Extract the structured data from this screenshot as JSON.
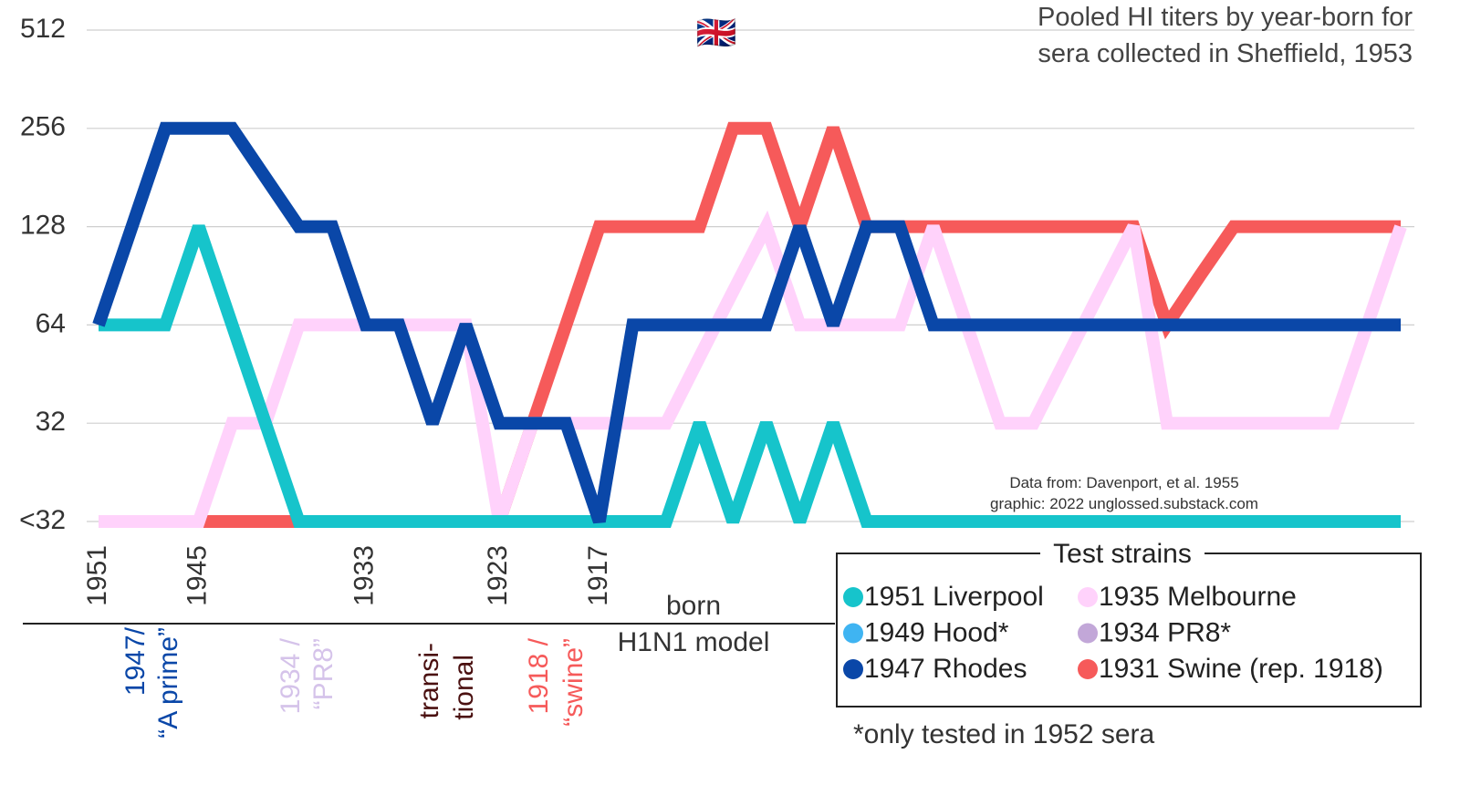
{
  "chart_data": {
    "type": "line",
    "title": [
      "Pooled HI titers by year-born for",
      "sera collected in Sheffield, 1953"
    ],
    "categories": [
      "1951",
      null,
      null,
      "1945",
      null,
      null,
      null,
      null,
      "1933",
      null,
      null,
      null,
      "1923",
      null,
      null,
      "1917",
      null,
      null,
      null,
      null,
      null,
      null,
      null,
      null,
      null,
      null,
      null,
      null,
      null,
      null,
      null,
      null,
      null,
      null,
      null,
      null,
      null,
      null,
      null,
      null
    ],
    "series": [
      {
        "name": "1951 Liverpool",
        "color": "#16c4cb",
        "values": [
          64,
          64,
          64,
          128,
          64,
          32,
          16,
          16,
          16,
          16,
          16,
          16,
          16,
          16,
          16,
          16,
          16,
          16,
          32,
          16,
          32,
          16,
          32,
          16,
          16,
          16,
          16,
          16,
          16,
          16,
          16,
          16,
          16,
          16,
          16,
          16,
          16,
          16,
          16,
          16
        ]
      },
      {
        "name": "1949 Hood*",
        "color": "#3fb4f2"
      },
      {
        "name": "1947 Rhodes",
        "color": "#0a47a8",
        "values": [
          64,
          128,
          256,
          256,
          256,
          181,
          128,
          128,
          64,
          64,
          32,
          64,
          32,
          32,
          32,
          16,
          64,
          64,
          64,
          64,
          64,
          128,
          64,
          128,
          128,
          64,
          64,
          64,
          64,
          64,
          64,
          64,
          64,
          64,
          64,
          64,
          64,
          64,
          64,
          64
        ]
      },
      {
        "name": "1935 Melbourne",
        "color": "#ffd2fb",
        "values": [
          16,
          16,
          16,
          16,
          32,
          32,
          64,
          64,
          64,
          64,
          64,
          64,
          16,
          32,
          32,
          32,
          32,
          32,
          51,
          81,
          128,
          64,
          64,
          64,
          64,
          128,
          64,
          32,
          32,
          51,
          81,
          128,
          32,
          32,
          32,
          32,
          32,
          32,
          64,
          128
        ]
      },
      {
        "name": "1934 PR8*",
        "color": "#c2a7d8"
      },
      {
        "name": "1931 Swine (rep. 1918)",
        "color": "#f65a5a",
        "values": [
          16,
          16,
          16,
          16,
          16,
          16,
          16,
          16,
          16,
          16,
          16,
          16,
          16,
          32,
          64,
          128,
          128,
          128,
          128,
          256,
          256,
          128,
          256,
          128,
          128,
          128,
          128,
          128,
          128,
          128,
          128,
          128,
          64,
          91,
          128,
          128,
          128,
          128,
          128,
          128
        ]
      }
    ],
    "ylim": [
      16,
      512
    ],
    "yticks": [
      {
        "value": 16,
        "label": "<32"
      },
      32,
      64,
      128,
      256,
      512
    ],
    "log_scale": "y",
    "grid": true,
    "legend": "lower right",
    "annotations": {
      "flag": "🇬🇧",
      "source": [
        "Data from: Davenport, et al. 1955",
        "graphic: 2022 unglossed.substack.com"
      ],
      "x_label": "born",
      "model_label": "H1N1 model",
      "model_groups": [
        [
          "1947/",
          "“A prime”"
        ],
        [
          "1934 /",
          "“PR8”"
        ],
        [
          "transi-",
          "tional"
        ],
        [
          "1918 /",
          "“swine”"
        ]
      ],
      "legend_title": "Test strains",
      "footnote": "*only tested in 1952 sera"
    }
  }
}
